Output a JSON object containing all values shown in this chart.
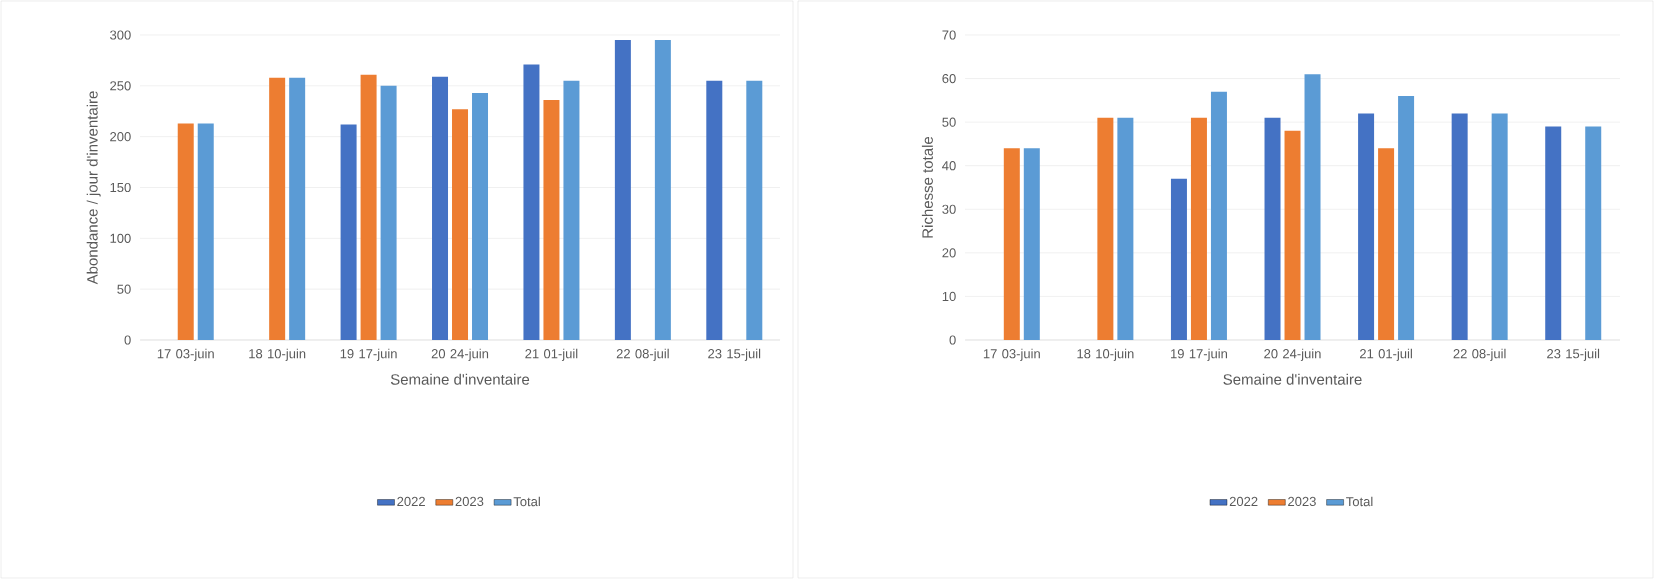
{
  "chart_data": [
    {
      "type": "bar",
      "categories": [
        "17 03-juin",
        "18 10-juin",
        "19 17-juin",
        "20 24-juin",
        "21 01-juil",
        "22 08-juil",
        "23 15-juil"
      ],
      "xlabel": "Semaine d'inventaire",
      "ylabel": "Abondance / jour d'inventaire",
      "ylim": [
        0,
        300
      ],
      "yticks": [
        0,
        50,
        100,
        150,
        200,
        250,
        300
      ],
      "grid": "y",
      "legend": "bottom",
      "series": [
        {
          "name": "2022",
          "color": "#4472c4",
          "values": [
            null,
            null,
            212,
            259,
            271,
            295,
            255
          ]
        },
        {
          "name": "2023",
          "color": "#ed7d31",
          "values": [
            213,
            258,
            261,
            227,
            236,
            null,
            null
          ]
        },
        {
          "name": "Total",
          "color": "#5b9bd5",
          "values": [
            213,
            258,
            250,
            243,
            255,
            295,
            255
          ]
        }
      ]
    },
    {
      "type": "bar",
      "categories": [
        "17 03-juin",
        "18 10-juin",
        "19 17-juin",
        "20 24-juin",
        "21 01-juil",
        "22 08-juil",
        "23 15-juil"
      ],
      "xlabel": "Semaine d'inventaire",
      "ylabel": "Richesse totale",
      "ylim": [
        0,
        70
      ],
      "yticks": [
        0,
        10,
        20,
        30,
        40,
        50,
        60,
        70
      ],
      "grid": "y",
      "legend": "bottom",
      "series": [
        {
          "name": "2022",
          "color": "#4472c4",
          "values": [
            null,
            null,
            37,
            51,
            52,
            52,
            49
          ]
        },
        {
          "name": "2023",
          "color": "#ed7d31",
          "values": [
            44,
            51,
            51,
            48,
            44,
            null,
            null
          ]
        },
        {
          "name": "Total",
          "color": "#5b9bd5",
          "values": [
            44,
            51,
            57,
            61,
            56,
            52,
            49
          ]
        }
      ]
    }
  ]
}
